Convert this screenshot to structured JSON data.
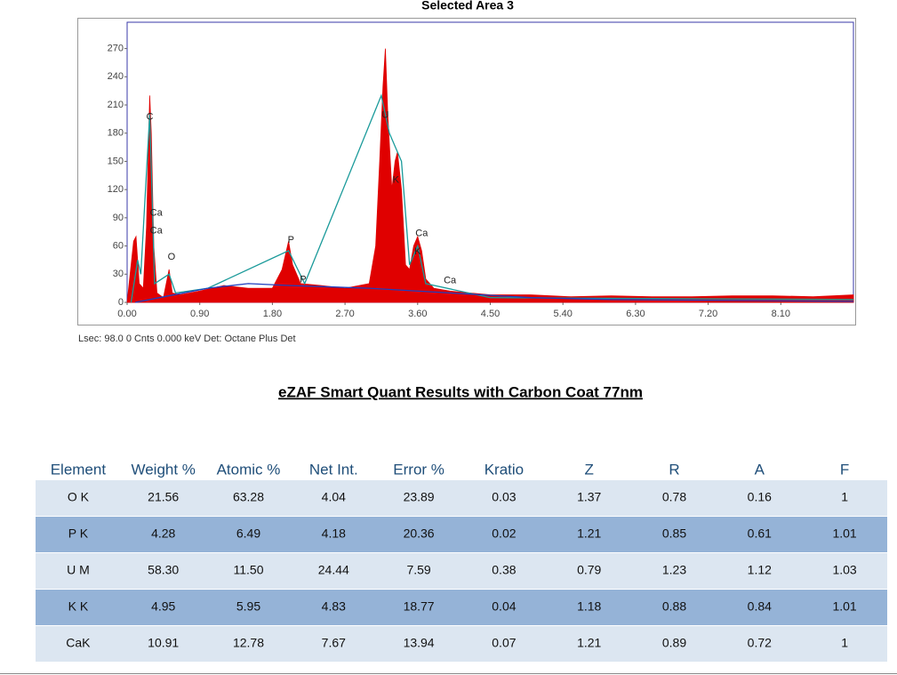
{
  "chart_data": {
    "type": "area",
    "title": "Selected Area 3",
    "xlim": [
      0,
      9
    ],
    "ylim": [
      0,
      298
    ],
    "xticks": [
      {
        "value": 0,
        "label": "0.00"
      },
      {
        "value": 0.9,
        "label": "0.90"
      },
      {
        "value": 1.8,
        "label": "1.80"
      },
      {
        "value": 2.7,
        "label": "2.70"
      },
      {
        "value": 3.6,
        "label": "3.60"
      },
      {
        "value": 4.5,
        "label": "4.50"
      },
      {
        "value": 5.4,
        "label": "5.40"
      },
      {
        "value": 6.3,
        "label": "6.30"
      },
      {
        "value": 7.2,
        "label": "7.20"
      },
      {
        "value": 8.1,
        "label": "8.10"
      }
    ],
    "yticks": [
      0,
      30,
      60,
      90,
      120,
      150,
      180,
      210,
      240,
      270
    ],
    "series": [
      {
        "name": "Spectrum",
        "color": "#e00000",
        "style": "area",
        "x": [
          0.0,
          0.08,
          0.11,
          0.15,
          0.2,
          0.24,
          0.28,
          0.3,
          0.33,
          0.37,
          0.45,
          0.52,
          0.56,
          0.65,
          0.9,
          1.2,
          1.5,
          1.8,
          1.92,
          2.0,
          2.05,
          2.15,
          2.4,
          2.7,
          3.0,
          3.08,
          3.13,
          3.17,
          3.2,
          3.23,
          3.28,
          3.32,
          3.35,
          3.4,
          3.45,
          3.5,
          3.55,
          3.6,
          3.65,
          3.7,
          3.8,
          4.0,
          4.5,
          5.0,
          5.5,
          6.0,
          6.5,
          7.0,
          7.5,
          8.0,
          8.5,
          9.0
        ],
        "values": [
          0,
          65,
          70,
          20,
          15,
          80,
          220,
          180,
          60,
          10,
          5,
          35,
          10,
          8,
          12,
          18,
          15,
          15,
          35,
          65,
          40,
          20,
          18,
          15,
          20,
          60,
          150,
          230,
          270,
          200,
          120,
          150,
          160,
          120,
          40,
          35,
          60,
          70,
          55,
          25,
          15,
          12,
          8,
          8,
          6,
          7,
          6,
          6,
          7,
          7,
          6,
          8
        ]
      },
      {
        "name": "Fit",
        "color": "#1a9a9a",
        "style": "line",
        "x": [
          0.05,
          0.13,
          0.17,
          0.28,
          0.34,
          0.52,
          0.6,
          1.0,
          2.0,
          2.2,
          3.15,
          3.25,
          3.4,
          3.5,
          3.6,
          3.7,
          4.5,
          9.0
        ],
        "values": [
          0,
          45,
          30,
          200,
          20,
          30,
          10,
          15,
          55,
          20,
          220,
          180,
          150,
          40,
          60,
          20,
          5,
          3
        ]
      },
      {
        "name": "Background",
        "color": "#1f3fbf",
        "style": "line",
        "x": [
          0.1,
          0.4,
          1.0,
          1.5,
          2.0,
          3.0,
          4.0,
          5.0,
          6.0,
          9.0
        ],
        "values": [
          0,
          5,
          15,
          20,
          18,
          15,
          10,
          5,
          3,
          1
        ]
      }
    ],
    "annotations": [
      {
        "text": "C",
        "x": 0.28,
        "y": 197
      },
      {
        "text": "Ca",
        "x": 0.36,
        "y": 95
      },
      {
        "text": "Ca",
        "x": 0.36,
        "y": 76
      },
      {
        "text": "O",
        "x": 0.55,
        "y": 48
      },
      {
        "text": "P",
        "x": 2.03,
        "y": 66
      },
      {
        "text": "P",
        "x": 2.18,
        "y": 24
      },
      {
        "text": "U",
        "x": 3.2,
        "y": 199
      },
      {
        "text": "K",
        "x": 3.33,
        "y": 130
      },
      {
        "text": "Ca",
        "x": 3.65,
        "y": 73
      },
      {
        "text": "K",
        "x": 3.6,
        "y": 54
      },
      {
        "text": "Ca",
        "x": 4.0,
        "y": 23
      }
    ],
    "footer": "Lsec: 98.0 0 Cnts  0.000 keV Det: Octane Plus Det"
  },
  "heading": "eZAF Smart Quant Results with Carbon Coat 77nm",
  "table": {
    "columns": [
      "Element",
      "Weight %",
      "Atomic %",
      "Net Int.",
      "Error %",
      "Kratio",
      "Z",
      "R",
      "A",
      "F"
    ],
    "rows": [
      [
        "O K",
        "21.56",
        "63.28",
        "4.04",
        "23.89",
        "0.03",
        "1.37",
        "0.78",
        "0.16",
        "1"
      ],
      [
        "P K",
        "4.28",
        "6.49",
        "4.18",
        "20.36",
        "0.02",
        "1.21",
        "0.85",
        "0.61",
        "1.01"
      ],
      [
        "U M",
        "58.30",
        "11.50",
        "24.44",
        "7.59",
        "0.38",
        "0.79",
        "1.23",
        "1.12",
        "1.03"
      ],
      [
        "K K",
        "4.95",
        "5.95",
        "4.83",
        "18.77",
        "0.04",
        "1.18",
        "0.88",
        "0.84",
        "1.01"
      ],
      [
        "CaK",
        "10.91",
        "12.78",
        "7.67",
        "13.94",
        "0.07",
        "1.21",
        "0.89",
        "0.72",
        "1"
      ]
    ]
  }
}
